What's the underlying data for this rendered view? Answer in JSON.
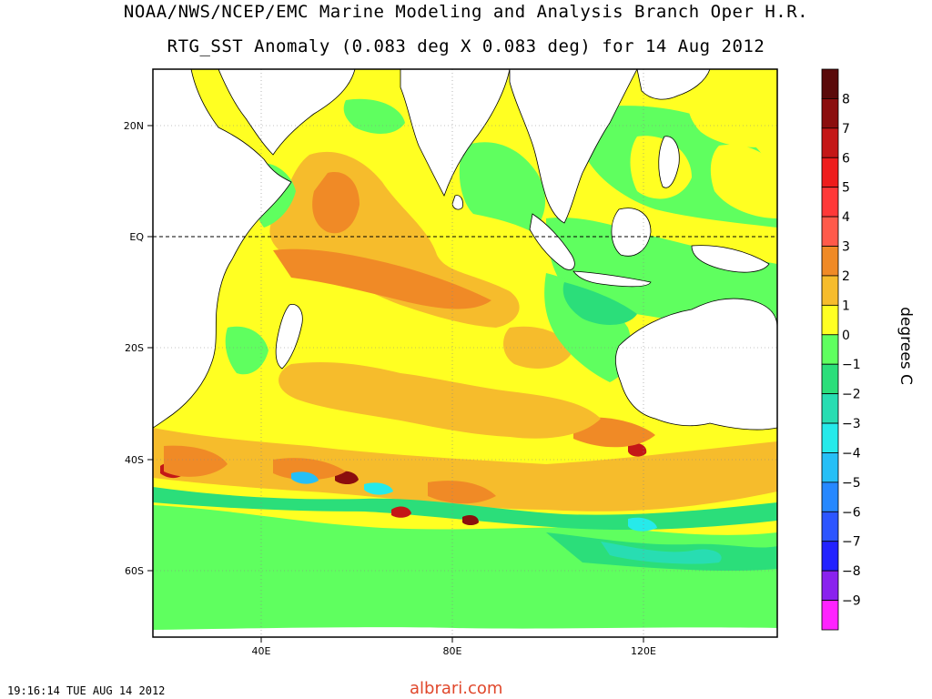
{
  "header": {
    "title_line1": "NOAA/NWS/NCEP/EMC Marine Modeling and Analysis Branch Oper H.R.",
    "title_line2": "RTG_SST Anomaly (0.083 deg X 0.083 deg) for 14 Aug 2012"
  },
  "map": {
    "projection": "lat-lon",
    "lon_range": [
      20,
      146
    ],
    "lat_range": [
      -72,
      30
    ],
    "lat_ticks": [
      {
        "label": "20N",
        "lat": 20
      },
      {
        "label": "EQ",
        "lat": 0
      },
      {
        "label": "20S",
        "lat": -20
      },
      {
        "label": "40S",
        "lat": -40
      },
      {
        "label": "60S",
        "lat": -60
      }
    ],
    "lon_ticks": [
      {
        "label": "40E",
        "lon": 40
      },
      {
        "label": "80E",
        "lon": 80
      },
      {
        "label": "120E",
        "lon": 120
      }
    ],
    "equator_line": "dashed",
    "grid": "dotted"
  },
  "colorbar": {
    "units": "degrees C",
    "levels": [
      {
        "value": 8,
        "label": "8",
        "color": "#5a0a0a"
      },
      {
        "value": 7,
        "label": "7",
        "color": "#8b0e0e"
      },
      {
        "value": 6,
        "label": "6",
        "color": "#c41717"
      },
      {
        "value": 5,
        "label": "5",
        "color": "#ee1c1c"
      },
      {
        "value": 4,
        "label": "4",
        "color": "#ff3838"
      },
      {
        "value": 3,
        "label": "3",
        "color": "#ff5a4a"
      },
      {
        "value": 2,
        "label": "2",
        "color": "#f08a26"
      },
      {
        "value": 1,
        "label": "1",
        "color": "#f6bc2c"
      },
      {
        "value": 0,
        "label": "0",
        "color": "#ffff22"
      },
      {
        "value": -1,
        "label": "−1",
        "color": "#5fff5f"
      },
      {
        "value": -2,
        "label": "−2",
        "color": "#2bde7a"
      },
      {
        "value": -3,
        "label": "−3",
        "color": "#28ddb2"
      },
      {
        "value": -4,
        "label": "−4",
        "color": "#26eaea"
      },
      {
        "value": -5,
        "label": "−5",
        "color": "#26bff6"
      },
      {
        "value": -6,
        "label": "−6",
        "color": "#2688ff"
      },
      {
        "value": -7,
        "label": "−7",
        "color": "#2c55ff"
      },
      {
        "value": -8,
        "label": "−8",
        "color": "#2222ff"
      },
      {
        "value": -9,
        "label": "−9",
        "color": "#8a22ee"
      },
      {
        "value": -10,
        "label": "",
        "color": "#ff22ff"
      }
    ]
  },
  "footer": {
    "timestamp": "19:16:14  TUE AUG 14 2012",
    "watermark": "albrari.com"
  }
}
